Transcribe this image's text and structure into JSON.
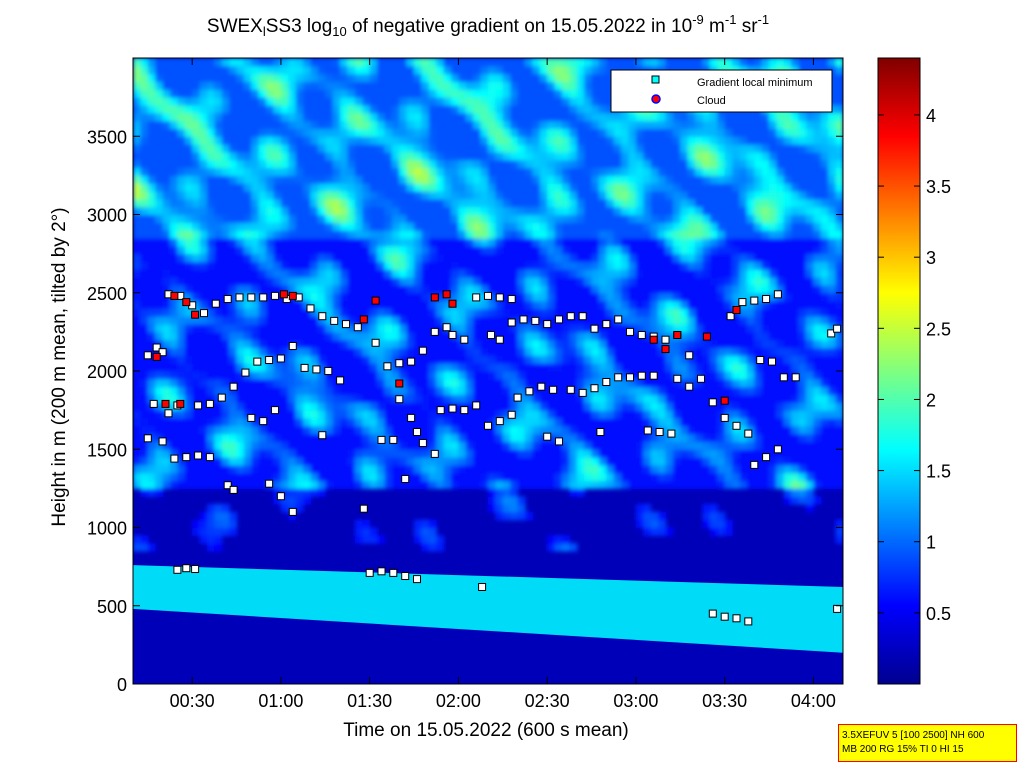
{
  "chart_data": {
    "type": "heatmap",
    "title_parts": [
      "SWEX",
      "l",
      "SS3 log",
      "10",
      " of negative gradient on 15.05.2022 in 10",
      "-9",
      " m",
      "-1",
      " sr",
      "-1"
    ],
    "xlabel": "Time on 15.05.2022 (600 s mean)",
    "ylabel": "Height in m (200 m mean, tilted by 2°)",
    "x_tick_labels": [
      "00:30",
      "01:00",
      "01:30",
      "02:00",
      "02:30",
      "03:00",
      "03:30",
      "04:00"
    ],
    "x_ticks_min": [
      30,
      60,
      90,
      120,
      150,
      180,
      210,
      240
    ],
    "x_range_min": [
      10,
      250
    ],
    "y_ticks": [
      0,
      500,
      1000,
      1500,
      2000,
      2500,
      3000,
      3500
    ],
    "y_tick_labels": [
      "0",
      "500",
      "1000",
      "1500",
      "2000",
      "2500",
      "3000",
      "3500"
    ],
    "y_range": [
      0,
      4000
    ],
    "colorbar": {
      "range": [
        0,
        4.4
      ],
      "ticks": [
        0.5,
        1,
        1.5,
        2,
        2.5,
        3,
        3.5,
        4
      ],
      "tick_labels": [
        "0.5",
        "1",
        "1.5",
        "2",
        "2.5",
        "3",
        "3.5",
        "4"
      ],
      "colormap": "jet"
    },
    "legend": {
      "placement": "top-right",
      "entries": [
        "Gradient local minimum",
        "Cloud"
      ]
    },
    "layers": [
      {
        "t0": 10,
        "t1": 250,
        "h0": 480,
        "h1": 760,
        "h0_end": 200,
        "h1_end": 620,
        "value": 1.6
      },
      {
        "t0": 10,
        "t1": 250,
        "h0": 0,
        "h1": 480,
        "value": 0.25
      },
      {
        "t0": 10,
        "t1": 250,
        "h0": 760,
        "h1": 1000,
        "value": 0.2
      }
    ],
    "gradient_minima": [
      {
        "t": 15,
        "h": 2100
      },
      {
        "t": 18,
        "h": 2150
      },
      {
        "t": 20,
        "h": 2120
      },
      {
        "t": 17,
        "h": 1790
      },
      {
        "t": 22,
        "h": 1730
      },
      {
        "t": 25,
        "h": 1780
      },
      {
        "t": 15,
        "h": 1570
      },
      {
        "t": 20,
        "h": 1550
      },
      {
        "t": 24,
        "h": 1440
      },
      {
        "t": 28,
        "h": 1450
      },
      {
        "t": 32,
        "h": 1460
      },
      {
        "t": 36,
        "h": 1450
      },
      {
        "t": 25,
        "h": 730
      },
      {
        "t": 28,
        "h": 740
      },
      {
        "t": 31,
        "h": 735
      },
      {
        "t": 22,
        "h": 2490
      },
      {
        "t": 26,
        "h": 2480
      },
      {
        "t": 30,
        "h": 2420
      },
      {
        "t": 34,
        "h": 2370
      },
      {
        "t": 38,
        "h": 2430
      },
      {
        "t": 42,
        "h": 2460
      },
      {
        "t": 46,
        "h": 2470
      },
      {
        "t": 50,
        "h": 2470
      },
      {
        "t": 54,
        "h": 2470
      },
      {
        "t": 58,
        "h": 2480
      },
      {
        "t": 62,
        "h": 2460
      },
      {
        "t": 66,
        "h": 2470
      },
      {
        "t": 70,
        "h": 2400
      },
      {
        "t": 74,
        "h": 2350
      },
      {
        "t": 78,
        "h": 2320
      },
      {
        "t": 82,
        "h": 2300
      },
      {
        "t": 86,
        "h": 2280
      },
      {
        "t": 32,
        "h": 1780
      },
      {
        "t": 36,
        "h": 1790
      },
      {
        "t": 40,
        "h": 1830
      },
      {
        "t": 44,
        "h": 1900
      },
      {
        "t": 48,
        "h": 1990
      },
      {
        "t": 52,
        "h": 2060
      },
      {
        "t": 56,
        "h": 2070
      },
      {
        "t": 60,
        "h": 2080
      },
      {
        "t": 64,
        "h": 2160
      },
      {
        "t": 68,
        "h": 2020
      },
      {
        "t": 72,
        "h": 2010
      },
      {
        "t": 76,
        "h": 2000
      },
      {
        "t": 80,
        "h": 1940
      },
      {
        "t": 50,
        "h": 1700
      },
      {
        "t": 54,
        "h": 1680
      },
      {
        "t": 58,
        "h": 1750
      },
      {
        "t": 42,
        "h": 1270
      },
      {
        "t": 44,
        "h": 1240
      },
      {
        "t": 56,
        "h": 1280
      },
      {
        "t": 60,
        "h": 1200
      },
      {
        "t": 64,
        "h": 1100
      },
      {
        "t": 74,
        "h": 1590
      },
      {
        "t": 88,
        "h": 1120
      },
      {
        "t": 92,
        "h": 2180
      },
      {
        "t": 96,
        "h": 2030
      },
      {
        "t": 100,
        "h": 2050
      },
      {
        "t": 104,
        "h": 2060
      },
      {
        "t": 108,
        "h": 2130
      },
      {
        "t": 112,
        "h": 2250
      },
      {
        "t": 116,
        "h": 2280
      },
      {
        "t": 118,
        "h": 2230
      },
      {
        "t": 122,
        "h": 2200
      },
      {
        "t": 94,
        "h": 1560
      },
      {
        "t": 98,
        "h": 1560
      },
      {
        "t": 100,
        "h": 1820
      },
      {
        "t": 104,
        "h": 1700
      },
      {
        "t": 106,
        "h": 1610
      },
      {
        "t": 108,
        "h": 1540
      },
      {
        "t": 112,
        "h": 1470
      },
      {
        "t": 102,
        "h": 1310
      },
      {
        "t": 114,
        "h": 1750
      },
      {
        "t": 118,
        "h": 1760
      },
      {
        "t": 122,
        "h": 1750
      },
      {
        "t": 126,
        "h": 1780
      },
      {
        "t": 90,
        "h": 710
      },
      {
        "t": 94,
        "h": 720
      },
      {
        "t": 98,
        "h": 710
      },
      {
        "t": 102,
        "h": 690
      },
      {
        "t": 106,
        "h": 670
      },
      {
        "t": 126,
        "h": 2470
      },
      {
        "t": 130,
        "h": 2480
      },
      {
        "t": 134,
        "h": 2470
      },
      {
        "t": 138,
        "h": 2460
      },
      {
        "t": 131,
        "h": 2230
      },
      {
        "t": 134,
        "h": 2200
      },
      {
        "t": 138,
        "h": 2310
      },
      {
        "t": 142,
        "h": 2330
      },
      {
        "t": 146,
        "h": 2320
      },
      {
        "t": 150,
        "h": 2300
      },
      {
        "t": 154,
        "h": 2330
      },
      {
        "t": 158,
        "h": 2350
      },
      {
        "t": 162,
        "h": 2350
      },
      {
        "t": 166,
        "h": 2270
      },
      {
        "t": 170,
        "h": 2300
      },
      {
        "t": 174,
        "h": 2330
      },
      {
        "t": 130,
        "h": 1650
      },
      {
        "t": 134,
        "h": 1680
      },
      {
        "t": 138,
        "h": 1720
      },
      {
        "t": 140,
        "h": 1830
      },
      {
        "t": 144,
        "h": 1870
      },
      {
        "t": 148,
        "h": 1900
      },
      {
        "t": 152,
        "h": 1880
      },
      {
        "t": 158,
        "h": 1880
      },
      {
        "t": 162,
        "h": 1860
      },
      {
        "t": 166,
        "h": 1890
      },
      {
        "t": 170,
        "h": 1930
      },
      {
        "t": 174,
        "h": 1960
      },
      {
        "t": 178,
        "h": 1960
      },
      {
        "t": 182,
        "h": 1970
      },
      {
        "t": 186,
        "h": 1970
      },
      {
        "t": 150,
        "h": 1580
      },
      {
        "t": 154,
        "h": 1550
      },
      {
        "t": 168,
        "h": 1610
      },
      {
        "t": 128,
        "h": 620
      },
      {
        "t": 178,
        "h": 2250
      },
      {
        "t": 182,
        "h": 2230
      },
      {
        "t": 186,
        "h": 2220
      },
      {
        "t": 190,
        "h": 2200
      },
      {
        "t": 194,
        "h": 2230
      },
      {
        "t": 198,
        "h": 2100
      },
      {
        "t": 184,
        "h": 1620
      },
      {
        "t": 188,
        "h": 1610
      },
      {
        "t": 192,
        "h": 1600
      },
      {
        "t": 194,
        "h": 1950
      },
      {
        "t": 198,
        "h": 1900
      },
      {
        "t": 202,
        "h": 1950
      },
      {
        "t": 206,
        "h": 1800
      },
      {
        "t": 210,
        "h": 1700
      },
      {
        "t": 214,
        "h": 1650
      },
      {
        "t": 218,
        "h": 1600
      },
      {
        "t": 206,
        "h": 450
      },
      {
        "t": 210,
        "h": 430
      },
      {
        "t": 214,
        "h": 420
      },
      {
        "t": 218,
        "h": 400
      },
      {
        "t": 212,
        "h": 2350
      },
      {
        "t": 216,
        "h": 2440
      },
      {
        "t": 220,
        "h": 2450
      },
      {
        "t": 224,
        "h": 2460
      },
      {
        "t": 228,
        "h": 2490
      },
      {
        "t": 220,
        "h": 1400
      },
      {
        "t": 224,
        "h": 1450
      },
      {
        "t": 228,
        "h": 1500
      },
      {
        "t": 222,
        "h": 2070
      },
      {
        "t": 226,
        "h": 2060
      },
      {
        "t": 230,
        "h": 1960
      },
      {
        "t": 234,
        "h": 1960
      },
      {
        "t": 246,
        "h": 2240
      },
      {
        "t": 248,
        "h": 2270
      },
      {
        "t": 248,
        "h": 480
      }
    ],
    "clouds": [
      {
        "t": 18,
        "h": 2090
      },
      {
        "t": 21,
        "h": 1790
      },
      {
        "t": 24,
        "h": 2480
      },
      {
        "t": 26,
        "h": 1790
      },
      {
        "t": 28,
        "h": 2440
      },
      {
        "t": 31,
        "h": 2360
      },
      {
        "t": 61,
        "h": 2490
      },
      {
        "t": 64,
        "h": 2480
      },
      {
        "t": 88,
        "h": 2330
      },
      {
        "t": 92,
        "h": 2450
      },
      {
        "t": 100,
        "h": 1920
      },
      {
        "t": 112,
        "h": 2470
      },
      {
        "t": 116,
        "h": 2490
      },
      {
        "t": 118,
        "h": 2430
      },
      {
        "t": 186,
        "h": 2200
      },
      {
        "t": 190,
        "h": 2140
      },
      {
        "t": 194,
        "h": 2230
      },
      {
        "t": 204,
        "h": 2220
      },
      {
        "t": 210,
        "h": 1810
      },
      {
        "t": 214,
        "h": 2390
      }
    ]
  },
  "info_box": {
    "line1": "3.5XEFUV 5 [100 2500] NH 600",
    "line2": "MB 200 RG 15% TI 0 HI 15"
  }
}
